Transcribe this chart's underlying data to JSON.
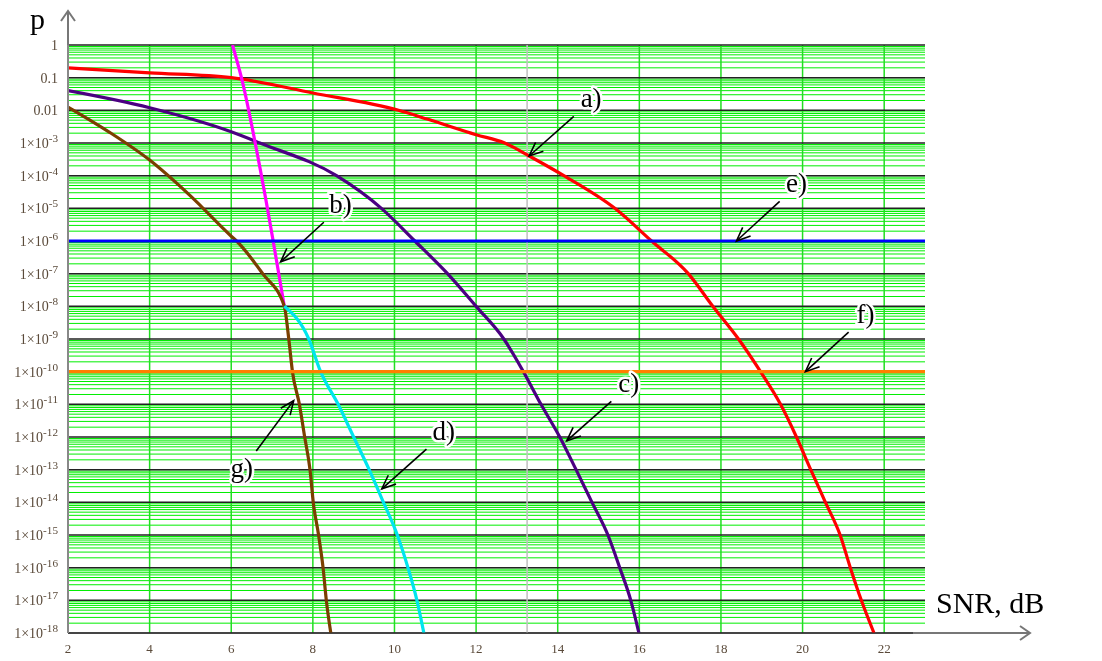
{
  "chart_data": {
    "type": "line",
    "xlabel": "SNR, dB",
    "ylabel": "p",
    "log": "y",
    "grid": true,
    "marker": "none",
    "line_style": "solid",
    "xlim": [
      2,
      23
    ],
    "xticks": [
      2,
      4,
      6,
      8,
      10,
      12,
      14,
      16,
      18,
      20,
      22
    ],
    "ylim": [
      1e-18,
      1
    ],
    "yticks": [
      1,
      0.1,
      0.01,
      {
        "value": 0.001,
        "label": "1×10$^{-3}$"
      },
      {
        "value": 0.0001,
        "label": "1×10$^{-4}$"
      },
      {
        "value": 1e-05,
        "label": "1×10$^{-5}$"
      },
      {
        "value": 1e-06,
        "label": "1×10$^{-6}$"
      },
      {
        "value": 1e-07,
        "label": "1×10$^{-7}$"
      },
      {
        "value": 1e-08,
        "label": "1×10$^{-8}$"
      },
      {
        "value": 1e-09,
        "label": "1×10$^{-9}$"
      },
      {
        "value": 1e-10,
        "label": "1×10$^{-10}$"
      },
      {
        "value": 1e-11,
        "label": "1×10$^{-11}$"
      },
      {
        "value": 1e-12,
        "label": "1×10$^{-12}$"
      },
      {
        "value": 1e-13,
        "label": "1×10$^{-13}$"
      },
      {
        "value": 1e-14,
        "label": "1×10$^{-14}$"
      },
      {
        "value": 1e-15,
        "label": "1×10$^{-15}$"
      },
      {
        "value": 1e-16,
        "label": "1×10$^{-16}$"
      },
      {
        "value": 1e-17,
        "label": "1×10$^{-17}$"
      },
      {
        "value": 1e-18,
        "label": "1×10$^{-18}$"
      }
    ],
    "series": [
      {
        "color": "#ff0000",
        "x": [
          2,
          4,
          6,
          8,
          10.1,
          10.8,
          12,
          12.7,
          13.3,
          14.15,
          15.4,
          16.3,
          17.2,
          17.8,
          18.43,
          18.97,
          19.46,
          19.85,
          20.2,
          20.56,
          20.92,
          21.17,
          21.44,
          21.75
        ],
        "values": [
          0.2,
          0.14,
          0.1,
          0.034,
          0.01,
          0.0054,
          0.0018,
          0.001,
          0.0004,
          0.0001,
          1e-05,
          1e-06,
          1e-07,
          1e-08,
          1e-09,
          1e-10,
          1e-11,
          1e-12,
          1e-13,
          1e-14,
          1e-15,
          1e-16,
          1e-17,
          1e-18
        ]
      },
      {
        "color": "#4b0082",
        "x": [
          2,
          4,
          6,
          6.7,
          8.58,
          9.68,
          10.5,
          11.3,
          12.0,
          12.68,
          13.16,
          13.59,
          14.05,
          14.45,
          14.84,
          15.23,
          15.52,
          15.79,
          15.99
        ],
        "values": [
          0.04,
          0.012,
          0.0022,
          0.001,
          0.0001,
          1e-05,
          1e-06,
          1e-07,
          1e-08,
          1e-09,
          1e-10,
          1e-11,
          1e-12,
          1e-13,
          1e-14,
          1e-15,
          1e-16,
          1e-17,
          1e-18
        ]
      },
      {
        "color": "#ff00ff",
        "x": [
          6.03,
          6.25,
          6.74,
          7.3
        ],
        "values": [
          1,
          0.1,
          0.0001,
          1e-08
        ]
      },
      {
        "color": "#7b3f00",
        "x": [
          2,
          3,
          4,
          5,
          6,
          6.13,
          6.77,
          7.3,
          7.41,
          7.5,
          7.67,
          7.8,
          7.93,
          8.01,
          8.14,
          8.25,
          8.33,
          8.44
        ],
        "values": [
          0.0126,
          0.0022,
          0.0003,
          2.4e-05,
          1.4e-06,
          1e-06,
          1e-07,
          1e-08,
          1e-09,
          1e-10,
          1e-11,
          1e-12,
          1e-13,
          1e-14,
          1e-15,
          1e-16,
          1e-17,
          1e-18
        ]
      },
      {
        "color": "#00e5ee",
        "x": [
          7.3,
          7.9,
          8.19,
          8.62,
          9.0,
          9.38,
          9.73,
          10.07,
          10.33,
          10.55,
          10.72
        ],
        "values": [
          1e-08,
          1e-09,
          1e-10,
          1e-11,
          1e-12,
          1e-13,
          1e-14,
          1e-15,
          1e-16,
          1e-17,
          1e-18
        ]
      },
      {
        "color": "#0000ff",
        "x": [
          2,
          23
        ],
        "values": [
          1e-06,
          1e-06
        ]
      },
      {
        "color": "#ff8000",
        "x": [
          2,
          23
        ],
        "values": [
          1e-10,
          1e-10
        ]
      }
    ],
    "ref_lines": [
      {
        "axis": "x",
        "value": 13.25,
        "color": "#c0c0c0"
      }
    ],
    "annotations": [
      {
        "text": "a)",
        "x": 13.3,
        "y": 0.0004
      },
      {
        "text": "b)",
        "x": 7.21,
        "y": 2.3e-07
      },
      {
        "text": "c)",
        "x": 14.22,
        "y": 7.6e-13
      },
      {
        "text": "d)",
        "x": 9.69,
        "y": 2.6e-14
      },
      {
        "text": "e)",
        "x": 18.38,
        "y": 1e-06
      },
      {
        "text": "f)",
        "x": 20.07,
        "y": 1e-10
      },
      {
        "text": "g)",
        "x": 7.53,
        "y": 1.3e-11
      }
    ]
  }
}
